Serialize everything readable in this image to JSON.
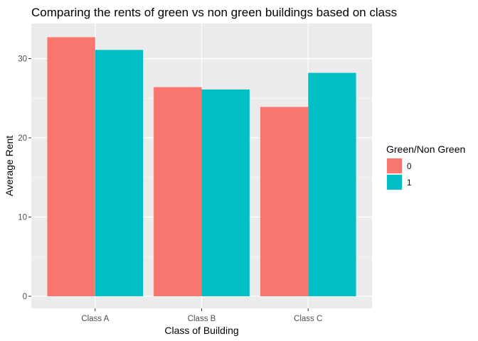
{
  "chart_data": {
    "type": "bar",
    "title": "Comparing the rents of green vs non green buildings based on class",
    "xlabel": "Class of Building",
    "ylabel": "Average Rent",
    "categories": [
      "Class A",
      "Class B",
      "Class C"
    ],
    "series": [
      {
        "name": "0",
        "values": [
          32.7,
          26.4,
          23.9
        ]
      },
      {
        "name": "1",
        "values": [
          31.1,
          26.1,
          28.2
        ]
      }
    ],
    "ylim": [
      0,
      34.35
    ],
    "yticks": [
      0,
      10,
      20,
      30
    ],
    "grid": true,
    "legend": {
      "title": "Green/Non Green",
      "placement": "right"
    }
  },
  "colors": {
    "panel_background": "#ebebeb",
    "grid_major": "#ffffff",
    "series": [
      "#f8766d",
      "#00bfc4"
    ]
  }
}
